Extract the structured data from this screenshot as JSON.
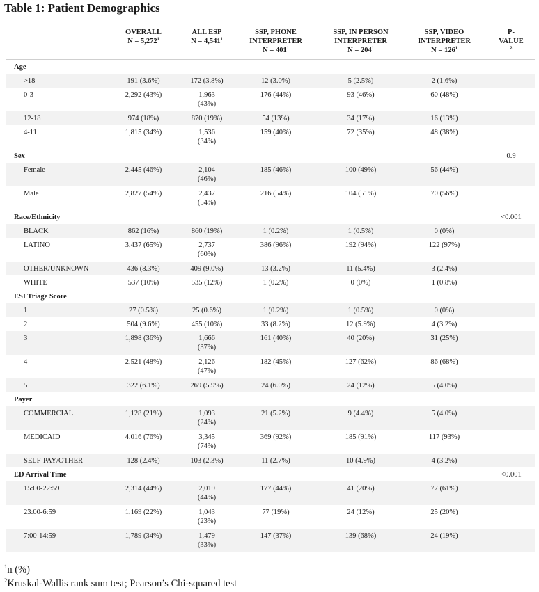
{
  "title": "Table 1: Patient Demographics",
  "header": {
    "overall": {
      "line1": "OVERALL",
      "line2": "N = 5,272"
    },
    "all_esp": {
      "line1": "ALL ESP",
      "line2": "N = 4,541"
    },
    "phone": {
      "line1": "SSP, PHONE",
      "line2": "INTERPRETER",
      "line3": "N = 401"
    },
    "inperson": {
      "line1": "SSP, IN PERSON",
      "line2": "INTERPRETER",
      "line3": "N = 204"
    },
    "video": {
      "line1": "SSP, VIDEO",
      "line2": "INTERPRETER",
      "line3": "N = 126"
    },
    "pvalue": {
      "line1": "P-",
      "line2": "VALUE"
    },
    "sup1": "1",
    "sup2": "2"
  },
  "rows": [
    {
      "kind": "group",
      "label": "Age",
      "p": ""
    },
    {
      "label": ">18",
      "overall": "191 (3.6%)",
      "all_esp": [
        "172 (3.8%)"
      ],
      "phone": "12 (3.0%)",
      "inperson": "5 (2.5%)",
      "video": "2 (1.6%)"
    },
    {
      "label": "0-3",
      "overall": "2,292 (43%)",
      "all_esp": [
        "1,963",
        "(43%)"
      ],
      "phone": "176 (44%)",
      "inperson": "93 (46%)",
      "video": "60 (48%)"
    },
    {
      "label": "12-18",
      "overall": "974 (18%)",
      "all_esp": [
        "870 (19%)"
      ],
      "phone": "54 (13%)",
      "inperson": "34 (17%)",
      "video": "16 (13%)"
    },
    {
      "label": "4-11",
      "overall": "1,815 (34%)",
      "all_esp": [
        "1,536",
        "(34%)"
      ],
      "phone": "159 (40%)",
      "inperson": "72 (35%)",
      "video": "48 (38%)"
    },
    {
      "kind": "group",
      "label": "Sex",
      "p": "0.9"
    },
    {
      "label": "Female",
      "overall": "2,445 (46%)",
      "all_esp": [
        "2,104",
        "(46%)"
      ],
      "phone": "185 (46%)",
      "inperson": "100 (49%)",
      "video": "56 (44%)"
    },
    {
      "label": "Male",
      "overall": "2,827 (54%)",
      "all_esp": [
        "2,437",
        "(54%)"
      ],
      "phone": "216 (54%)",
      "inperson": "104 (51%)",
      "video": "70 (56%)"
    },
    {
      "kind": "group",
      "label": "Race/Ethnicity",
      "p": "<0.001"
    },
    {
      "label": "BLACK",
      "overall": "862 (16%)",
      "all_esp": [
        "860 (19%)"
      ],
      "phone": "1 (0.2%)",
      "inperson": "1 (0.5%)",
      "video": "0 (0%)"
    },
    {
      "label": "LATINO",
      "overall": "3,437 (65%)",
      "all_esp": [
        "2,737",
        "(60%)"
      ],
      "phone": "386 (96%)",
      "inperson": "192 (94%)",
      "video": "122 (97%)"
    },
    {
      "label": "OTHER/UNKNOWN",
      "overall": "436 (8.3%)",
      "all_esp": [
        "409 (9.0%)"
      ],
      "phone": "13 (3.2%)",
      "inperson": "11 (5.4%)",
      "video": "3 (2.4%)"
    },
    {
      "label": "WHITE",
      "overall": "537 (10%)",
      "all_esp": [
        "535 (12%)"
      ],
      "phone": "1 (0.2%)",
      "inperson": "0 (0%)",
      "video": "1 (0.8%)"
    },
    {
      "kind": "group",
      "label": "ESI Triage Score",
      "p": ""
    },
    {
      "label": "1",
      "overall": "27 (0.5%)",
      "all_esp": [
        "25 (0.6%)"
      ],
      "phone": "1 (0.2%)",
      "inperson": "1 (0.5%)",
      "video": "0 (0%)"
    },
    {
      "label": "2",
      "overall": "504 (9.6%)",
      "all_esp": [
        "455 (10%)"
      ],
      "phone": "33 (8.2%)",
      "inperson": "12 (5.9%)",
      "video": "4 (3.2%)"
    },
    {
      "label": "3",
      "overall": "1,898 (36%)",
      "all_esp": [
        "1,666",
        "(37%)"
      ],
      "phone": "161 (40%)",
      "inperson": "40 (20%)",
      "video": "31 (25%)"
    },
    {
      "label": "4",
      "overall": "2,521 (48%)",
      "all_esp": [
        "2,126",
        "(47%)"
      ],
      "phone": "182 (45%)",
      "inperson": "127 (62%)",
      "video": "86 (68%)"
    },
    {
      "label": "5",
      "overall": "322 (6.1%)",
      "all_esp": [
        "269 (5.9%)"
      ],
      "phone": "24 (6.0%)",
      "inperson": "24 (12%)",
      "video": "5 (4.0%)"
    },
    {
      "kind": "group",
      "label": "Payer",
      "p": ""
    },
    {
      "label": "COMMERCIAL",
      "overall": "1,128 (21%)",
      "all_esp": [
        "1,093",
        "(24%)"
      ],
      "phone": "21 (5.2%)",
      "inperson": "9 (4.4%)",
      "video": "5 (4.0%)"
    },
    {
      "label": "MEDICAID",
      "overall": "4,016 (76%)",
      "all_esp": [
        "3,345",
        "(74%)"
      ],
      "phone": "369 (92%)",
      "inperson": "185 (91%)",
      "video": "117 (93%)"
    },
    {
      "label": "SELF-PAY/OTHER",
      "overall": "128 (2.4%)",
      "all_esp": [
        "103 (2.3%)"
      ],
      "phone": "11 (2.7%)",
      "inperson": "10 (4.9%)",
      "video": "4 (3.2%)"
    },
    {
      "kind": "group",
      "label": "ED Arrival Time",
      "p": "<0.001"
    },
    {
      "label": "15:00-22:59",
      "overall": "2,314 (44%)",
      "all_esp": [
        "2,019",
        "(44%)"
      ],
      "phone": "177 (44%)",
      "inperson": "41 (20%)",
      "video": "77 (61%)"
    },
    {
      "label": "23:00-6:59",
      "overall": "1,169 (22%)",
      "all_esp": [
        "1,043",
        "(23%)"
      ],
      "phone": "77 (19%)",
      "inperson": "24 (12%)",
      "video": "25 (20%)"
    },
    {
      "label": "7:00-14:59",
      "overall": "1,789 (34%)",
      "all_esp": [
        "1,479",
        "(33%)"
      ],
      "phone": "147 (37%)",
      "inperson": "139 (68%)",
      "video": "24 (19%)"
    }
  ],
  "footnotes": [
    {
      "sup": "1",
      "text": "n (%)"
    },
    {
      "sup": "2",
      "text": "Kruskal-Wallis rank sum test; Pearson’s Chi-squared test"
    }
  ]
}
